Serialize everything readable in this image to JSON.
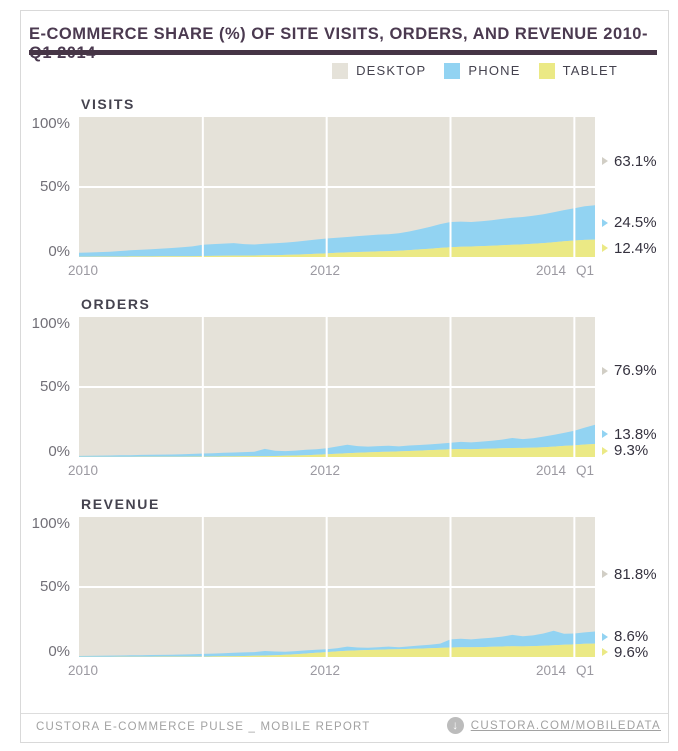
{
  "header": {
    "title": "E-COMMERCE SHARE (%) OF SITE VISITS, ORDERS, AND REVENUE 2010-Q1 2014"
  },
  "legend": {
    "items": [
      {
        "key": "desktop",
        "label": "DESKTOP"
      },
      {
        "key": "phone",
        "label": "PHONE"
      },
      {
        "key": "tablet",
        "label": "TABLET"
      }
    ]
  },
  "footer": {
    "left_text": "CUSTORA E-COMMERCE PULSE _ MOBILE REPORT",
    "link_text": "CUSTORA.COM/MOBILEDATA",
    "icon": "download-circle-icon",
    "icon_glyph": "↓"
  },
  "chart_data": {
    "type": "area",
    "stacked": true,
    "x_interval": "monthly",
    "x_start": "2010-01",
    "x_end": "2014-03",
    "x_gridline_years": [
      2011,
      2012,
      2013,
      2014
    ],
    "ylim": [
      0,
      100
    ],
    "grid": true,
    "legend_position": "top-right",
    "colors": {
      "desktop": "#e5e2d9",
      "phone": "#92d3f2",
      "tablet": "#ebe985",
      "desktop_marker": "#d1cec5",
      "gridline": "#ffffff"
    },
    "charts": [
      {
        "title": "VISITS",
        "y_ticks": [
          "100%",
          "50%",
          "0%"
        ],
        "x_ticks": [
          "2010",
          "2012",
          "2014",
          "Q1"
        ],
        "end_labels": [
          {
            "series": "desktop",
            "text": "63.1%",
            "value": 63.1,
            "center_pct": 68.4
          },
          {
            "series": "phone",
            "text": "24.5%",
            "value": 24.5,
            "center_pct": 24.6
          },
          {
            "series": "tablet",
            "text": "12.4%",
            "value": 12.4,
            "center_pct": 6.2
          }
        ],
        "series": {
          "phone": [
            2.8,
            3.0,
            3.2,
            3.5,
            4.0,
            4.4,
            4.8,
            5.2,
            5.5,
            5.9,
            6.4,
            7.0,
            8.1,
            8.4,
            8.7,
            8.9,
            8.2,
            7.8,
            8.2,
            8.5,
            8.8,
            9.2,
            9.7,
            10.2,
            10.6,
            10.8,
            11.0,
            11.3,
            11.6,
            12.0,
            12.0,
            12.5,
            13.3,
            14.4,
            15.6,
            17.0,
            18.0,
            18.0,
            17.5,
            17.8,
            18.2,
            18.8,
            19.3,
            19.6,
            20.1,
            20.7,
            21.5,
            22.3,
            23.0,
            24.0,
            24.5
          ],
          "tablet": [
            0.2,
            0.2,
            0.3,
            0.3,
            0.3,
            0.4,
            0.4,
            0.4,
            0.5,
            0.5,
            0.5,
            0.6,
            0.7,
            0.8,
            0.9,
            1.0,
            1.0,
            1.1,
            1.2,
            1.3,
            1.5,
            1.7,
            2.0,
            2.3,
            2.6,
            3.0,
            3.3,
            3.6,
            3.8,
            4.0,
            4.2,
            4.5,
            4.9,
            5.4,
            5.9,
            6.5,
            7.0,
            7.3,
            7.5,
            7.8,
            8.1,
            8.4,
            8.7,
            9.0,
            9.4,
            9.9,
            10.5,
            11.2,
            11.8,
            12.2,
            12.4
          ]
        }
      },
      {
        "title": "ORDERS",
        "y_ticks": [
          "100%",
          "50%",
          "0%"
        ],
        "x_ticks": [
          "2010",
          "2012",
          "2014",
          "Q1"
        ],
        "end_labels": [
          {
            "series": "desktop",
            "text": "76.9%",
            "value": 76.9,
            "center_pct": 61.5
          },
          {
            "series": "phone",
            "text": "13.8%",
            "value": 13.8,
            "center_pct": 16.2
          },
          {
            "series": "tablet",
            "text": "9.3%",
            "value": 9.3,
            "center_pct": 4.6
          }
        ],
        "series": {
          "phone": [
            0.7,
            0.8,
            0.9,
            1.0,
            1.1,
            1.2,
            1.3,
            1.4,
            1.5,
            1.6,
            1.8,
            1.9,
            2.2,
            2.4,
            2.6,
            2.8,
            3.0,
            3.3,
            5.2,
            3.7,
            3.3,
            3.5,
            3.9,
            4.0,
            4.3,
            5.2,
            6.1,
            4.8,
            4.1,
            4.2,
            4.2,
            3.6,
            3.9,
            4.0,
            4.1,
            4.4,
            4.7,
            5.1,
            4.8,
            5.2,
            5.6,
            6.2,
            7.2,
            6.3,
            6.7,
            7.6,
            8.4,
            9.3,
            10.5,
            12.1,
            13.8
          ],
          "tablet": [
            0.1,
            0.1,
            0.1,
            0.1,
            0.1,
            0.1,
            0.2,
            0.2,
            0.2,
            0.2,
            0.2,
            0.3,
            0.3,
            0.3,
            0.4,
            0.4,
            0.5,
            0.5,
            0.6,
            0.7,
            0.9,
            1.1,
            1.3,
            1.6,
            1.9,
            2.3,
            2.7,
            3.0,
            3.3,
            3.6,
            3.8,
            4.0,
            4.3,
            4.6,
            4.9,
            5.2,
            5.5,
            5.7,
            5.6,
            5.8,
            6.0,
            6.2,
            6.4,
            6.5,
            6.7,
            7.0,
            7.4,
            7.9,
            8.3,
            8.9,
            9.3
          ]
        }
      },
      {
        "title": "REVENUE",
        "y_ticks": [
          "100%",
          "50%",
          "0%"
        ],
        "x_ticks": [
          "2010",
          "2012",
          "2014",
          "Q1"
        ],
        "end_labels": [
          {
            "series": "desktop",
            "text": "81.8%",
            "value": 81.8,
            "center_pct": 59.1
          },
          {
            "series": "phone",
            "text": "8.6%",
            "value": 8.6,
            "center_pct": 14.5
          },
          {
            "series": "tablet",
            "text": "9.6%",
            "value": 9.6,
            "center_pct": 3.5
          }
        ],
        "series": {
          "phone": [
            0.6,
            0.7,
            0.8,
            0.9,
            0.9,
            1.0,
            1.1,
            1.2,
            1.2,
            1.3,
            1.5,
            1.7,
            1.9,
            2.0,
            2.2,
            2.4,
            2.6,
            2.6,
            3.2,
            2.6,
            2.2,
            2.2,
            2.2,
            2.2,
            2.1,
            2.3,
            3.0,
            2.1,
            1.6,
            1.8,
            2.0,
            1.4,
            1.8,
            2.2,
            2.6,
            3.1,
            5.8,
            6.0,
            5.7,
            6.1,
            6.5,
            7.1,
            8.1,
            7.2,
            7.6,
            8.8,
            10.4,
            7.8,
            7.8,
            8.2,
            8.6
          ],
          "tablet": [
            0.1,
            0.1,
            0.1,
            0.1,
            0.2,
            0.2,
            0.2,
            0.2,
            0.3,
            0.3,
            0.3,
            0.3,
            0.3,
            0.4,
            0.5,
            0.6,
            0.7,
            0.9,
            1.1,
            1.3,
            1.6,
            2.0,
            2.5,
            3.0,
            3.5,
            4.0,
            4.4,
            4.7,
            5.0,
            5.2,
            5.4,
            5.6,
            5.8,
            6.0,
            6.2,
            6.5,
            6.8,
            7.0,
            6.9,
            7.1,
            7.3,
            7.5,
            7.7,
            7.6,
            7.8,
            8.0,
            8.4,
            8.8,
            9.0,
            9.4,
            9.6
          ]
        }
      }
    ]
  }
}
